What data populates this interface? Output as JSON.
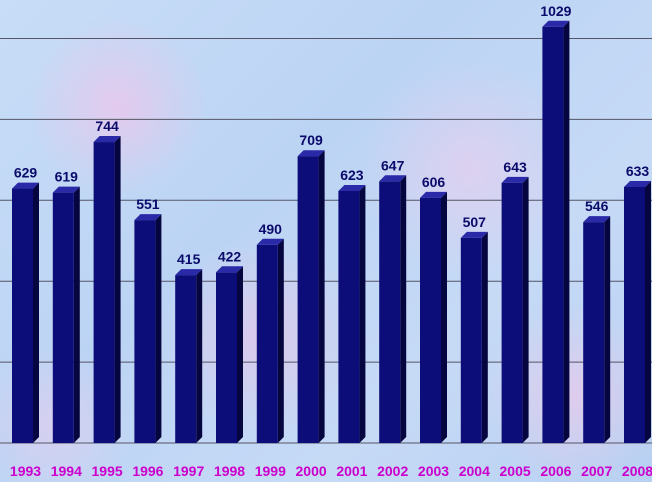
{
  "chart_data": {
    "type": "bar",
    "categories": [
      "1993",
      "1994",
      "1995",
      "1996",
      "1997",
      "1998",
      "1999",
      "2000",
      "2001",
      "2002",
      "2003",
      "2004",
      "2005",
      "2006",
      "2007",
      "2008"
    ],
    "values": [
      629,
      619,
      744,
      551,
      415,
      422,
      490,
      709,
      623,
      647,
      606,
      507,
      643,
      1029,
      546,
      633
    ],
    "title": "",
    "xlabel": "",
    "ylabel": "",
    "ylim": [
      0,
      1000
    ],
    "grid": true,
    "legend": "none",
    "colors": {
      "bar": "#0d0d7a",
      "bar_side": "#05053f",
      "bar_top": "#2a2aa8",
      "value_label": "#0a0a6a",
      "category_label": "#cc00cc",
      "gridline": "#555566"
    }
  }
}
